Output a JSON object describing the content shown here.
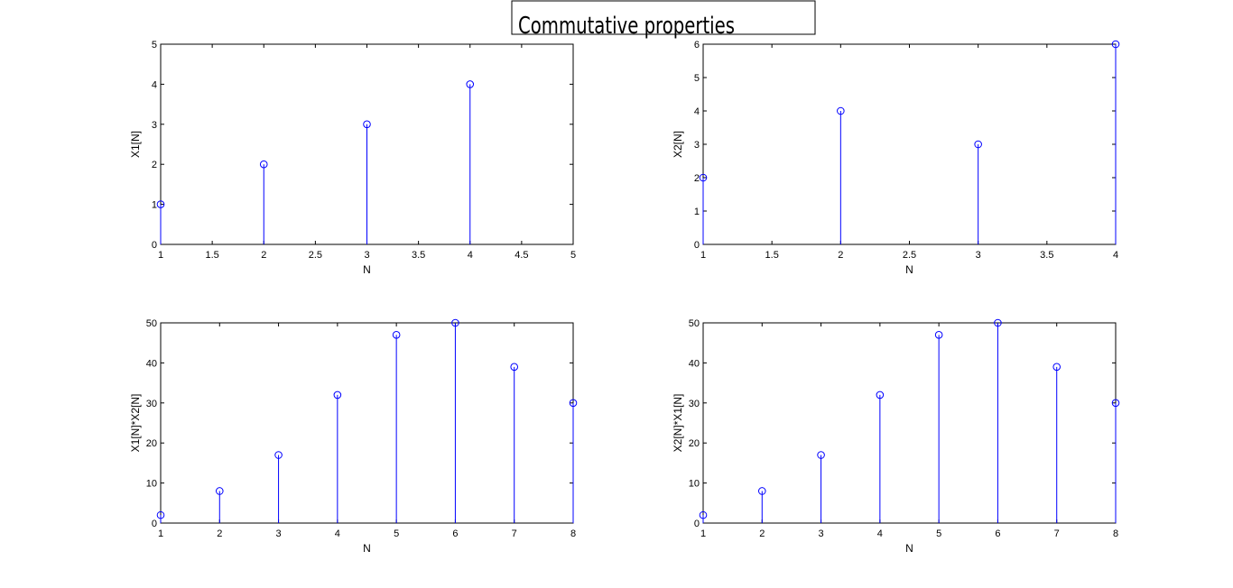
{
  "figure_title": "Commutative properties",
  "chart_data": [
    {
      "type": "stem",
      "xlabel": "N",
      "ylabel": "X1[N]",
      "xlim": [
        1,
        5
      ],
      "ylim": [
        0,
        5
      ],
      "xticks": [
        "1",
        "1.5",
        "2",
        "2.5",
        "3",
        "3.5",
        "4",
        "4.5",
        "5"
      ],
      "yticks": [
        "0",
        "1",
        "2",
        "3",
        "4",
        "5"
      ],
      "series": [
        {
          "x": [
            1,
            2,
            3,
            4
          ],
          "values": [
            1,
            2,
            3,
            4
          ],
          "color": "#0000ff"
        }
      ]
    },
    {
      "type": "stem",
      "xlabel": "N",
      "ylabel": "X2[N]",
      "xlim": [
        1,
        4
      ],
      "ylim": [
        0,
        6
      ],
      "xticks": [
        "1",
        "1.5",
        "2",
        "2.5",
        "3",
        "3.5",
        "4"
      ],
      "yticks": [
        "0",
        "1",
        "2",
        "3",
        "4",
        "5",
        "6"
      ],
      "series": [
        {
          "x": [
            1,
            2,
            3,
            4
          ],
          "values": [
            2,
            4,
            3,
            6
          ],
          "color": "#0000ff"
        }
      ]
    },
    {
      "type": "stem",
      "xlabel": "N",
      "ylabel": "X1[N]*X2[N]",
      "xlim": [
        1,
        8
      ],
      "ylim": [
        0,
        50
      ],
      "xticks": [
        "1",
        "2",
        "3",
        "4",
        "5",
        "6",
        "7",
        "8"
      ],
      "yticks": [
        "0",
        "10",
        "20",
        "30",
        "40",
        "50"
      ],
      "series": [
        {
          "x": [
            1,
            2,
            3,
            4,
            5,
            6,
            7,
            8
          ],
          "values": [
            2,
            8,
            17,
            32,
            47,
            50,
            39,
            30
          ],
          "color": "#0000ff"
        }
      ]
    },
    {
      "type": "stem",
      "xlabel": "N",
      "ylabel": "X2[N]*X1[N]",
      "xlim": [
        1,
        8
      ],
      "ylim": [
        0,
        50
      ],
      "xticks": [
        "1",
        "2",
        "3",
        "4",
        "5",
        "6",
        "7",
        "8"
      ],
      "yticks": [
        "0",
        "10",
        "20",
        "30",
        "40",
        "50"
      ],
      "series": [
        {
          "x": [
            1,
            2,
            3,
            4,
            5,
            6,
            7,
            8
          ],
          "values": [
            2,
            8,
            17,
            32,
            47,
            50,
            39,
            30
          ],
          "color": "#0000ff"
        }
      ]
    }
  ]
}
